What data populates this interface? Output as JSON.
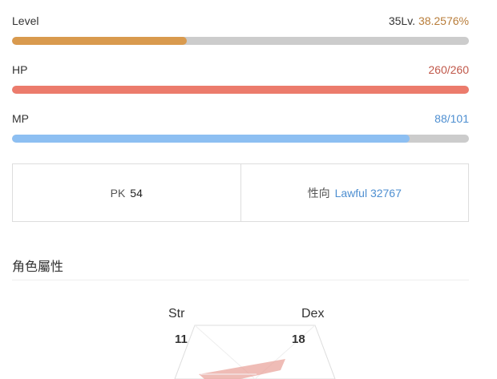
{
  "level": {
    "label": "Level",
    "lv_text": "35Lv.",
    "percent_text": "38.2576%",
    "fraction": 0.382576,
    "color": "#d99a4e",
    "value_color": "#b87d3a"
  },
  "hp": {
    "label": "HP",
    "value_text": "260/260",
    "fraction": 1.0,
    "color": "#ec7b6c",
    "value_color": "#c0584a"
  },
  "mp": {
    "label": "MP",
    "value_text": "88/101",
    "fraction": 0.871,
    "color": "#8dbff2",
    "value_color": "#4e8fd1"
  },
  "pk": {
    "label": "PK",
    "value": "54"
  },
  "alignment": {
    "label": "性向",
    "value": "Lawful 32767",
    "color": "#4e8fd1"
  },
  "attributes": {
    "title": "角色屬性",
    "stats": [
      {
        "name": "Str",
        "value": "11"
      },
      {
        "name": "Dex",
        "value": "18"
      }
    ],
    "fill_color": "#e8a097"
  }
}
